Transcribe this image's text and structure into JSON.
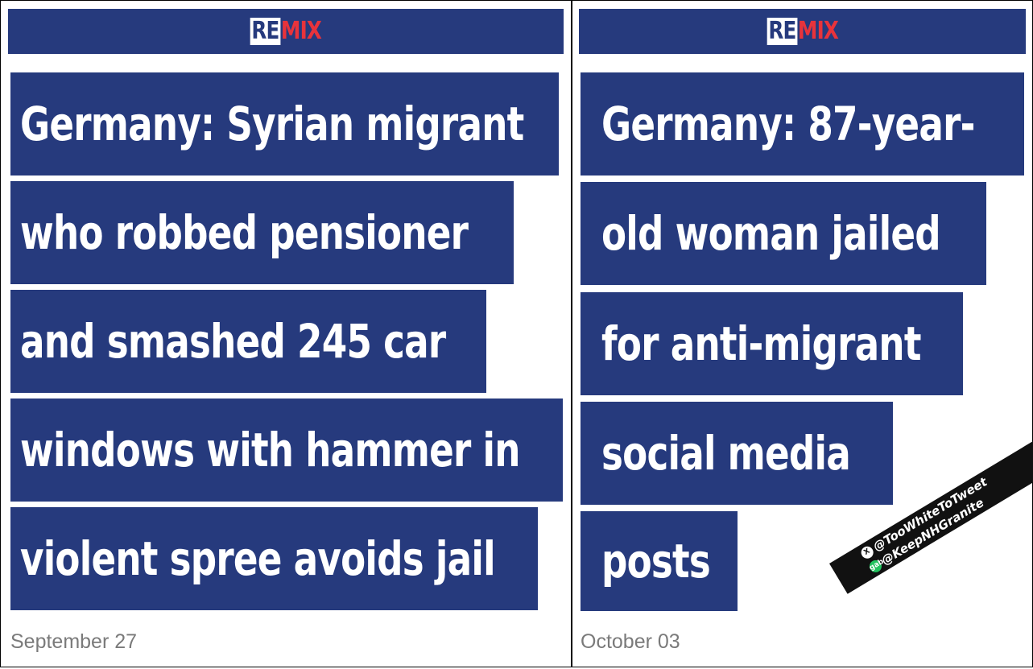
{
  "colors": {
    "brand_blue": "#263a7d",
    "logo_red": "#e8333b",
    "date_gray": "#7a7a7a",
    "gab_green": "#21c35e"
  },
  "left": {
    "logo": {
      "part1": "RE",
      "part2": "MIX"
    },
    "headline_lines": [
      "Germany: Syrian migrant",
      "who robbed pensioner",
      "and smashed 245 car",
      "windows with hammer in",
      "violent spree avoids jail"
    ],
    "date": "September 27"
  },
  "right": {
    "logo": {
      "part1": "RE",
      "part2": "MIX"
    },
    "headline_lines": [
      "Germany: 87-year-",
      "old woman jailed",
      "for anti-migrant",
      "social media",
      "posts"
    ],
    "date": "October 03"
  },
  "watermark": {
    "x_handle": "@TooWhiteToTweet",
    "gab_handle": "@KeepNHGranite",
    "x_icon": "x-icon",
    "gab_icon": "gab-icon",
    "x_glyph": "X",
    "gab_glyph": "gab"
  }
}
